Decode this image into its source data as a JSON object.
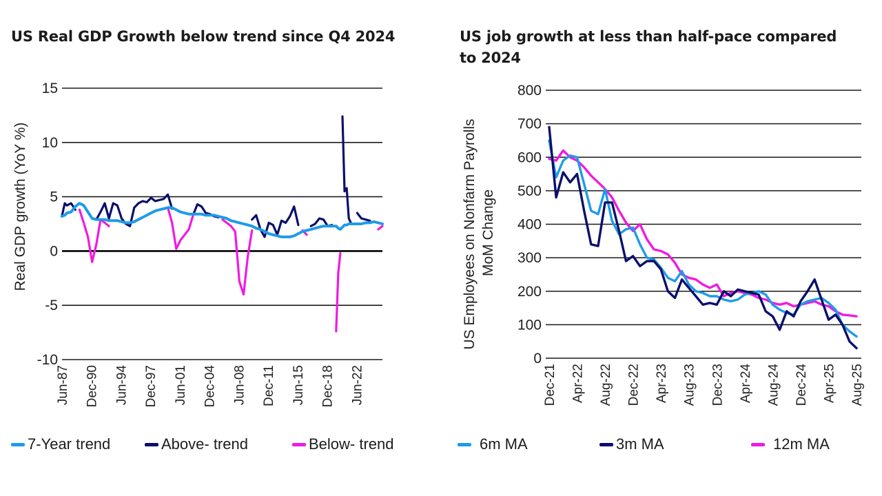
{
  "colors": {
    "trend": "#1e9be8",
    "above": "#0b0f6b",
    "below": "#f01ae0",
    "ma6": "#1e9be8",
    "ma3": "#0b0f6b",
    "ma12": "#f01ae0"
  },
  "chart_data": [
    {
      "type": "line",
      "title": "US Real GDP Growth below trend since Q4 2024",
      "xlabel": "",
      "ylabel": "Real GDP growth (YoY %)",
      "ylim": [
        -10,
        15
      ],
      "yticks": [
        15,
        10,
        5,
        0,
        -5,
        -10
      ],
      "xlim": [
        1987.42,
        2025.5
      ],
      "xticks": [
        {
          "label": "Jun-87",
          "x": 1987.42
        },
        {
          "label": "Dec-90",
          "x": 1990.92
        },
        {
          "label": "Jun-94",
          "x": 1994.42
        },
        {
          "label": "Dec-97",
          "x": 1997.92
        },
        {
          "label": "Jun-01",
          "x": 2001.42
        },
        {
          "label": "Dec-04",
          "x": 2004.92
        },
        {
          "label": "Jun-08",
          "x": 2008.42
        },
        {
          "label": "Dec-11",
          "x": 2011.92
        },
        {
          "label": "Jun-15",
          "x": 2015.42
        },
        {
          "label": "Dec-18",
          "x": 2018.92
        },
        {
          "label": "Jun-22",
          "x": 2022.42
        }
      ],
      "grid": true,
      "legend_position": "bottom",
      "x": [
        1987.4,
        1987.75,
        1988,
        1988.5,
        1989,
        1989.5,
        1990,
        1990.5,
        1991,
        1991.5,
        1992,
        1992.5,
        1993,
        1993.5,
        1994,
        1994.5,
        1995,
        1995.5,
        1996,
        1996.5,
        1997,
        1997.5,
        1998,
        1998.5,
        1999,
        1999.5,
        2000,
        2000.5,
        2001,
        2001.5,
        2002,
        2002.5,
        2003,
        2003.5,
        2004,
        2004.5,
        2005,
        2005.5,
        2006,
        2006.5,
        2007,
        2007.5,
        2008,
        2008.5,
        2009,
        2009.5,
        2010,
        2010.5,
        2011,
        2011.5,
        2012,
        2012.5,
        2013,
        2013.5,
        2014,
        2014.5,
        2015,
        2015.5,
        2016,
        2016.5,
        2017,
        2017.5,
        2018,
        2018.5,
        2019,
        2019.5,
        2020,
        2020.25,
        2020.5,
        2020.75,
        2021,
        2021.25,
        2021.5,
        2021.75,
        2022,
        2022.5,
        2023,
        2023.5,
        2024,
        2024.5,
        2025,
        2025.5
      ],
      "series": [
        {
          "name": "7-Year trend",
          "values": [
            3.2,
            3.3,
            3.5,
            3.6,
            4.1,
            4.4,
            4.2,
            3.6,
            3.0,
            2.9,
            2.9,
            2.9,
            2.8,
            2.8,
            2.8,
            2.7,
            2.6,
            2.6,
            2.7,
            2.9,
            3.1,
            3.3,
            3.5,
            3.7,
            3.8,
            3.9,
            4.0,
            4.0,
            3.8,
            3.6,
            3.5,
            3.4,
            3.4,
            3.4,
            3.4,
            3.3,
            3.3,
            3.3,
            3.2,
            3.1,
            3.0,
            2.8,
            2.7,
            2.6,
            2.5,
            2.4,
            2.3,
            2.1,
            2.0,
            1.8,
            1.6,
            1.5,
            1.4,
            1.3,
            1.3,
            1.3,
            1.4,
            1.6,
            1.8,
            1.9,
            2.0,
            2.1,
            2.2,
            2.3,
            2.3,
            2.3,
            2.3,
            2.1,
            2.0,
            2.2,
            2.4,
            2.4,
            2.5,
            2.5,
            2.5,
            2.5,
            2.5,
            2.6,
            2.6,
            2.7,
            2.6,
            2.5
          ]
        },
        {
          "name": "Above- trend",
          "values": [
            3.2,
            4.4,
            4.2,
            4.4,
            3.8,
            null,
            null,
            null,
            null,
            2.9,
            3.6,
            4.4,
            3.0,
            4.4,
            4.2,
            3.0,
            2.5,
            2.3,
            4.0,
            4.4,
            4.6,
            4.5,
            4.9,
            4.6,
            4.7,
            4.8,
            5.2,
            3.9,
            null,
            null,
            null,
            null,
            3.3,
            4.3,
            4.1,
            3.5,
            3.4,
            3.2,
            3.1,
            null,
            null,
            null,
            null,
            null,
            null,
            null,
            2.9,
            3.3,
            2.0,
            1.3,
            2.6,
            2.4,
            1.5,
            2.8,
            2.6,
            3.2,
            4.1,
            2.4,
            null,
            null,
            2.3,
            2.5,
            3.0,
            2.9,
            2.3,
            2.4,
            null,
            null,
            null,
            12.4,
            5.5,
            5.8,
            3.0,
            2.6,
            null,
            3.5,
            3.0,
            2.9,
            2.8,
            null,
            null,
            null
          ]
        },
        {
          "name": "Below- trend",
          "values": [
            null,
            null,
            null,
            null,
            null,
            3.8,
            2.6,
            1.3,
            -1.0,
            0.6,
            2.9,
            2.6,
            2.3,
            null,
            null,
            null,
            null,
            null,
            null,
            null,
            null,
            null,
            null,
            null,
            null,
            null,
            4.0,
            2.6,
            0.2,
            1.0,
            1.5,
            2.0,
            3.3,
            null,
            null,
            null,
            null,
            null,
            null,
            2.9,
            2.6,
            2.3,
            1.8,
            -2.8,
            -4.0,
            -0.5,
            1.9,
            null,
            null,
            null,
            null,
            null,
            null,
            null,
            null,
            null,
            null,
            null,
            1.9,
            1.5,
            null,
            null,
            null,
            null,
            null,
            null,
            -7.4,
            -2.0,
            -0.2,
            null,
            null,
            null,
            null,
            null,
            1.2,
            null,
            null,
            null,
            null,
            null,
            2.0,
            2.3
          ]
        }
      ]
    },
    {
      "type": "line",
      "title": "US job growth at less than half-pace compared to 2024",
      "xlabel": "",
      "ylabel": "US Employees on Nonfarm Payrolls MoM Change",
      "ylim": [
        0,
        800
      ],
      "yticks": [
        800,
        700,
        600,
        500,
        400,
        300,
        200,
        100,
        0
      ],
      "xticks": [
        "Dec-21",
        "Apr-22",
        "Aug-22",
        "Dec-22",
        "Apr-23",
        "Aug-23",
        "Dec-23",
        "Apr-24",
        "Aug-24",
        "Dec-24",
        "Apr-25",
        "Aug-25"
      ],
      "grid": true,
      "legend_position": "bottom",
      "x": [
        "Dec-21",
        "Jan-22",
        "Feb-22",
        "Mar-22",
        "Apr-22",
        "May-22",
        "Jun-22",
        "Jul-22",
        "Aug-22",
        "Sep-22",
        "Oct-22",
        "Nov-22",
        "Dec-22",
        "Jan-23",
        "Feb-23",
        "Mar-23",
        "Apr-23",
        "May-23",
        "Jun-23",
        "Jul-23",
        "Aug-23",
        "Sep-23",
        "Oct-23",
        "Nov-23",
        "Dec-23",
        "Jan-24",
        "Feb-24",
        "Mar-24",
        "Apr-24",
        "May-24",
        "Jun-24",
        "Jul-24",
        "Aug-24",
        "Sep-24",
        "Oct-24",
        "Nov-24",
        "Dec-24",
        "Jan-25",
        "Feb-25",
        "Mar-25",
        "Apr-25",
        "May-25",
        "Jun-25",
        "Jul-25",
        "Aug-25"
      ],
      "series": [
        {
          "name": "6m MA",
          "values": [
            650,
            540,
            590,
            605,
            600,
            520,
            440,
            430,
            505,
            410,
            370,
            385,
            390,
            340,
            300,
            295,
            270,
            240,
            230,
            260,
            220,
            200,
            195,
            185,
            185,
            175,
            170,
            175,
            190,
            195,
            200,
            190,
            160,
            145,
            135,
            130,
            160,
            170,
            175,
            180,
            165,
            145,
            100,
            80,
            65
          ]
        },
        {
          "name": "3m MA",
          "values": [
            690,
            480,
            555,
            525,
            550,
            440,
            340,
            335,
            465,
            465,
            380,
            290,
            305,
            275,
            290,
            290,
            265,
            200,
            180,
            235,
            210,
            185,
            160,
            165,
            160,
            200,
            185,
            205,
            200,
            195,
            190,
            140,
            125,
            85,
            140,
            125,
            170,
            200,
            235,
            175,
            115,
            130,
            100,
            50,
            30
          ]
        },
        {
          "name": "12m MA",
          "values": [
            595,
            590,
            620,
            600,
            590,
            570,
            545,
            525,
            505,
            480,
            440,
            405,
            380,
            400,
            355,
            325,
            320,
            310,
            285,
            250,
            240,
            235,
            220,
            210,
            220,
            185,
            195,
            200,
            195,
            190,
            180,
            175,
            165,
            160,
            165,
            155,
            160,
            165,
            170,
            160,
            155,
            140,
            130,
            128,
            125
          ]
        }
      ]
    }
  ],
  "left": {
    "title": "US Real GDP Growth below trend since Q4 2024",
    "ylabel": "Real GDP growth (YoY %)",
    "legend": [
      {
        "label": "7-Year trend",
        "key": "trend"
      },
      {
        "label": "Above- trend",
        "key": "above"
      },
      {
        "label": "Below- trend",
        "key": "below"
      }
    ]
  },
  "right": {
    "title": "US job growth at less than half-pace compared to 2024",
    "ylabel_line1": "US Employees on Nonfarm Payrolls",
    "ylabel_line2": "MoM Change",
    "legend": [
      {
        "label": "6m MA",
        "key": "ma6"
      },
      {
        "label": "3m MA",
        "key": "ma3"
      },
      {
        "label": "12m MA",
        "key": "ma12"
      }
    ]
  }
}
